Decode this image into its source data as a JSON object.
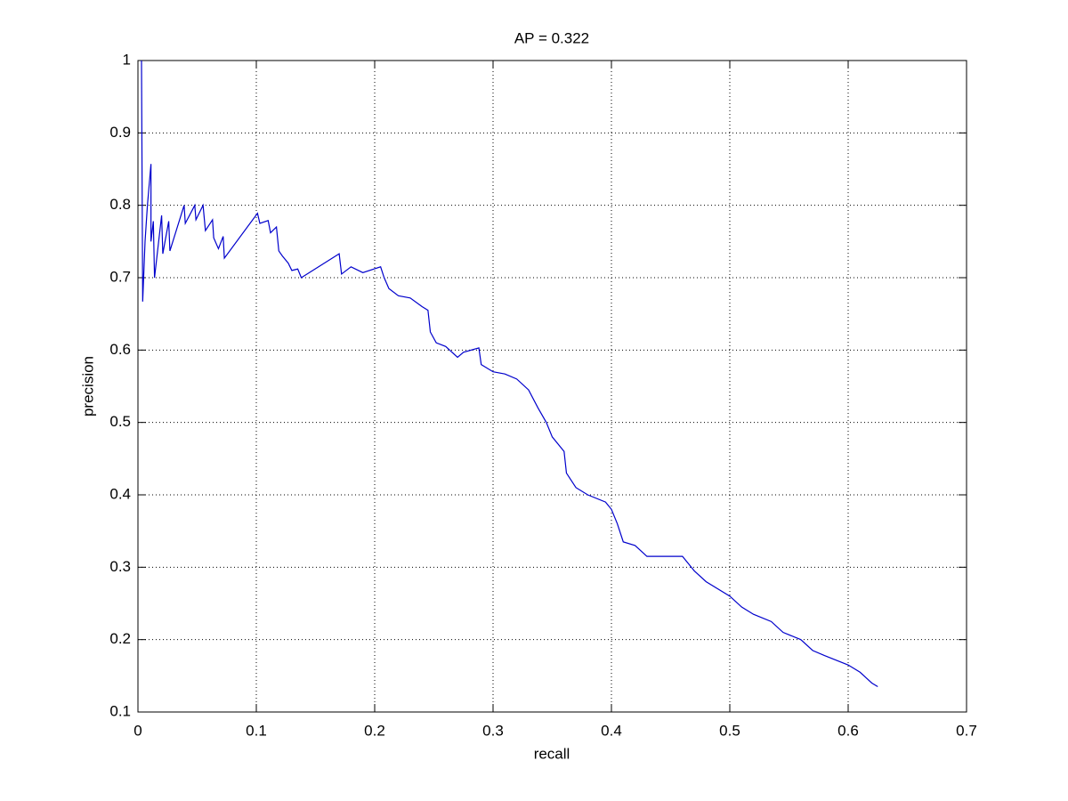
{
  "chart_data": {
    "type": "line",
    "title": "AP = 0.322",
    "x_label": "recall",
    "y_label": "precision",
    "color": "#0000cc",
    "grid": true,
    "xlim": [
      0,
      0.7
    ],
    "ylim": [
      0.1,
      1
    ],
    "xticks": [
      0,
      0.1,
      0.2,
      0.3,
      0.4,
      0.5,
      0.6,
      0.7
    ],
    "yticks": [
      0.1,
      0.2,
      0.3,
      0.4,
      0.5,
      0.6,
      0.7,
      0.8,
      0.9,
      1
    ],
    "x": [
      0.003,
      0.004,
      0.006,
      0.008,
      0.011,
      0.011,
      0.013,
      0.014,
      0.02,
      0.021,
      0.026,
      0.027,
      0.039,
      0.04,
      0.048,
      0.049,
      0.055,
      0.057,
      0.063,
      0.064,
      0.068,
      0.072,
      0.073,
      0.101,
      0.103,
      0.11,
      0.112,
      0.117,
      0.119,
      0.122,
      0.127,
      0.13,
      0.135,
      0.138,
      0.17,
      0.172,
      0.18,
      0.19,
      0.205,
      0.208,
      0.212,
      0.22,
      0.23,
      0.24,
      0.245,
      0.247,
      0.252,
      0.26,
      0.27,
      0.275,
      0.288,
      0.29,
      0.3,
      0.31,
      0.32,
      0.33,
      0.338,
      0.345,
      0.35,
      0.36,
      0.362,
      0.37,
      0.38,
      0.395,
      0.4,
      0.405,
      0.41,
      0.42,
      0.43,
      0.46,
      0.47,
      0.48,
      0.5,
      0.51,
      0.52,
      0.535,
      0.545,
      0.56,
      0.57,
      0.58,
      0.6,
      0.61,
      0.62,
      0.625
    ],
    "values": [
      1.0,
      0.667,
      0.75,
      0.8,
      0.857,
      0.75,
      0.778,
      0.7,
      0.786,
      0.733,
      0.778,
      0.737,
      0.8,
      0.775,
      0.8,
      0.78,
      0.8,
      0.765,
      0.78,
      0.755,
      0.74,
      0.757,
      0.727,
      0.789,
      0.775,
      0.779,
      0.762,
      0.77,
      0.737,
      0.73,
      0.72,
      0.71,
      0.712,
      0.7,
      0.733,
      0.705,
      0.715,
      0.707,
      0.715,
      0.7,
      0.685,
      0.675,
      0.672,
      0.66,
      0.655,
      0.625,
      0.61,
      0.605,
      0.59,
      0.597,
      0.603,
      0.58,
      0.57,
      0.567,
      0.56,
      0.545,
      0.52,
      0.5,
      0.48,
      0.46,
      0.43,
      0.41,
      0.4,
      0.39,
      0.38,
      0.36,
      0.335,
      0.33,
      0.315,
      0.315,
      0.295,
      0.28,
      0.26,
      0.245,
      0.235,
      0.225,
      0.21,
      0.2,
      0.185,
      0.178,
      0.165,
      0.155,
      0.14,
      0.135
    ]
  }
}
